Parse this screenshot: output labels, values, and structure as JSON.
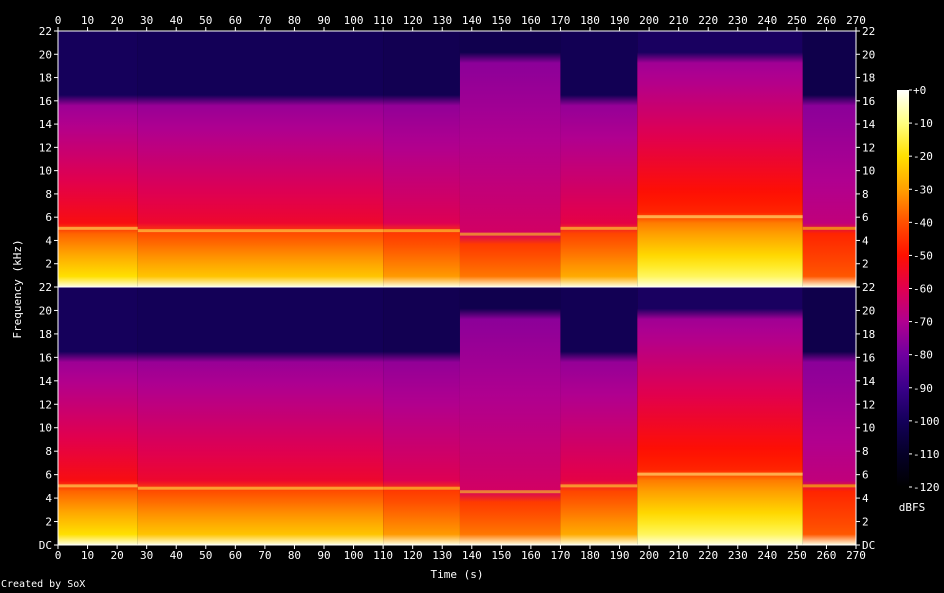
{
  "chart_data": {
    "type": "heatmap",
    "title": "",
    "xlabel": "Time (s)",
    "ylabel": "Frequency (kHz)",
    "xlim": [
      0,
      270
    ],
    "ylim": [
      0,
      22
    ],
    "x_ticks": [
      0,
      10,
      20,
      30,
      40,
      50,
      60,
      70,
      80,
      90,
      100,
      110,
      120,
      130,
      140,
      150,
      160,
      170,
      180,
      190,
      200,
      210,
      220,
      230,
      240,
      250,
      260,
      270
    ],
    "y_tick_labels_top": [
      "22",
      "20",
      "18",
      "16",
      "14",
      "12",
      "10",
      "8",
      "6",
      "4",
      "2"
    ],
    "y_tick_labels_bottom": [
      "22",
      "20",
      "18",
      "16",
      "14",
      "12",
      "10",
      "8",
      "6",
      "4",
      "2",
      "DC"
    ],
    "colorbar": {
      "label": "dBFS",
      "range": [
        -120,
        0
      ],
      "ticks": [
        "+0",
        "-10",
        "-20",
        "-30",
        "-40",
        "-50",
        "-60",
        "-70",
        "-80",
        "-90",
        "-100",
        "-110",
        "-120"
      ],
      "colors": [
        "#ffffff",
        "#ffff80",
        "#ffe000",
        "#ffa000",
        "#ff5000",
        "#ff1000",
        "#e00050",
        "#b00090",
        "#7000a0",
        "#3a008a",
        "#14005a",
        "#050028",
        "#000000"
      ]
    },
    "channels": [
      {
        "segments": [
          {
            "t": [
              0,
              27
            ],
            "cutoff_khz": 16,
            "bright_khz": 5.0,
            "level": 0.8
          },
          {
            "t": [
              27,
              110
            ],
            "cutoff_khz": 16,
            "bright_khz": 4.8,
            "level": 0.7
          },
          {
            "t": [
              110,
              136
            ],
            "cutoff_khz": 16,
            "bright_khz": 4.8,
            "level": 0.55
          },
          {
            "t": [
              136,
              170
            ],
            "cutoff_khz": 20,
            "bright_khz": 4.5,
            "level": 0.45
          },
          {
            "t": [
              170,
              196
            ],
            "cutoff_khz": 16,
            "bright_khz": 5.0,
            "level": 0.6
          },
          {
            "t": [
              196,
              252
            ],
            "cutoff_khz": 20,
            "bright_khz": 6.0,
            "level": 0.95
          },
          {
            "t": [
              252,
              270
            ],
            "cutoff_khz": 16,
            "bright_khz": 5.0,
            "level": 0.35
          }
        ]
      },
      {
        "segments": [
          {
            "t": [
              0,
              27
            ],
            "cutoff_khz": 16,
            "bright_khz": 5.0,
            "level": 0.8
          },
          {
            "t": [
              27,
              110
            ],
            "cutoff_khz": 16,
            "bright_khz": 4.8,
            "level": 0.7
          },
          {
            "t": [
              110,
              136
            ],
            "cutoff_khz": 16,
            "bright_khz": 4.8,
            "level": 0.55
          },
          {
            "t": [
              136,
              170
            ],
            "cutoff_khz": 20,
            "bright_khz": 4.5,
            "level": 0.45
          },
          {
            "t": [
              170,
              196
            ],
            "cutoff_khz": 16,
            "bright_khz": 5.0,
            "level": 0.6
          },
          {
            "t": [
              196,
              252
            ],
            "cutoff_khz": 20,
            "bright_khz": 6.0,
            "level": 0.95
          },
          {
            "t": [
              252,
              270
            ],
            "cutoff_khz": 16,
            "bright_khz": 5.0,
            "level": 0.35
          }
        ]
      }
    ]
  },
  "credit": "Created by SoX"
}
